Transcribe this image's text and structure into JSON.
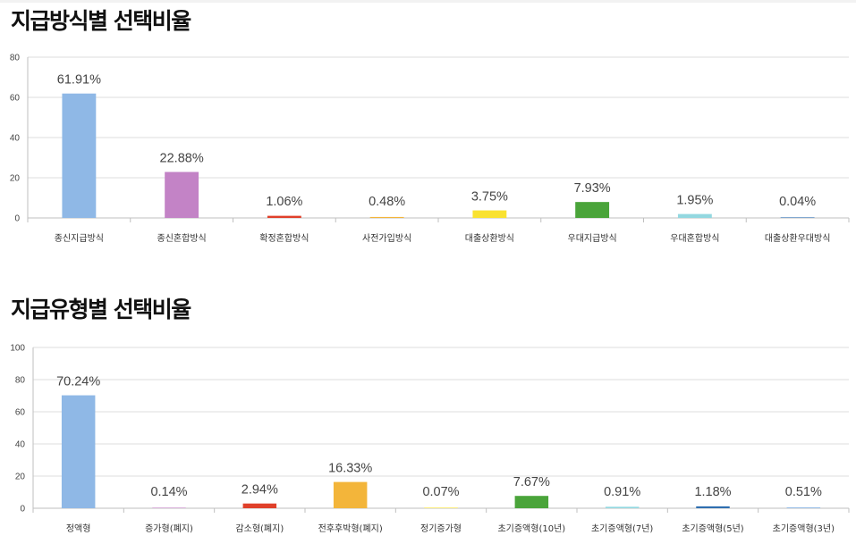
{
  "page": {
    "title_payment_method": "지급방식별 선택비율",
    "title_payment_type": "지급유형별 선택비율"
  },
  "chart_data": [
    {
      "type": "bar",
      "title": "지급방식별 선택비율",
      "categories": [
        "종신지급방식",
        "종신혼합방식",
        "확정혼합방식",
        "사전가입방식",
        "대출상환방식",
        "우대지급방식",
        "우대혼합방식",
        "대출상환우대방식"
      ],
      "values": [
        61.91,
        22.88,
        1.06,
        0.48,
        3.75,
        7.93,
        1.95,
        0.04
      ],
      "data_labels": [
        "61.91%",
        "22.88%",
        "1.06%",
        "0.48%",
        "3.75%",
        "7.93%",
        "1.95%",
        "0.04%"
      ],
      "colors": [
        "#8fb8e6",
        "#c383c6",
        "#e0402a",
        "#f3b53a",
        "#f9e231",
        "#4aa43a",
        "#93d8e0",
        "#2f6fb0"
      ],
      "ylim": [
        0,
        80
      ],
      "yticks": [
        0,
        20,
        40,
        60,
        80
      ],
      "grid": true,
      "legend": "none"
    },
    {
      "type": "bar",
      "title": "지급유형별 선택비율",
      "categories": [
        "정액형",
        "증가형(폐지)",
        "감소형(폐지)",
        "전후후박형(폐지)",
        "정기증가형",
        "초기증액형(10년)",
        "초기증액형(7년)",
        "초기증액형(5년)",
        "초기증액형(3년)"
      ],
      "values": [
        70.24,
        0.14,
        2.94,
        16.33,
        0.07,
        7.67,
        0.91,
        1.18,
        0.51
      ],
      "data_labels": [
        "70.24%",
        "0.14%",
        "2.94%",
        "16.33%",
        "0.07%",
        "7.67%",
        "0.91%",
        "1.18%",
        "0.51%"
      ],
      "colors": [
        "#8fb8e6",
        "#c383c6",
        "#e0402a",
        "#f3b53a",
        "#f9e231",
        "#4aa43a",
        "#93d8e0",
        "#2f6fb0",
        "#8fb8e6"
      ],
      "ylim": [
        0,
        100
      ],
      "yticks": [
        0,
        20,
        40,
        60,
        80,
        100
      ],
      "grid": true,
      "legend": "none"
    }
  ]
}
